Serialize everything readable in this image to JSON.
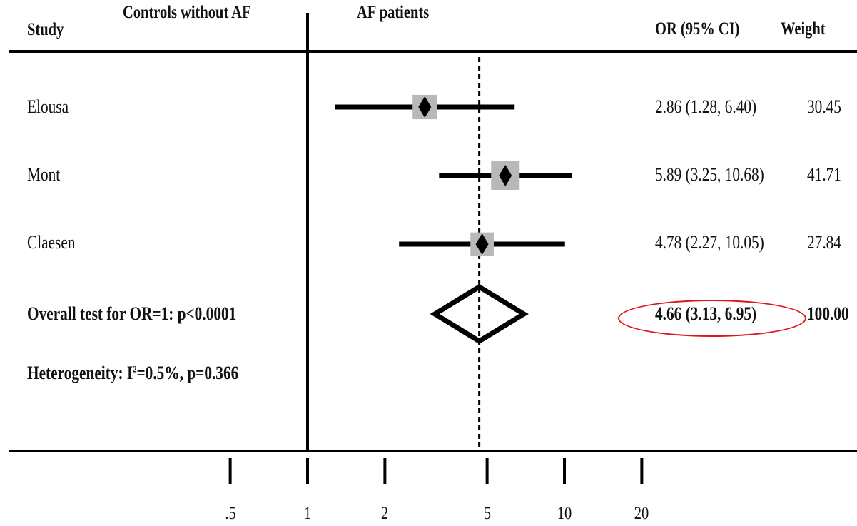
{
  "header": {
    "study": "Study",
    "left_side": "Controls without AF",
    "right_side": "AF patients",
    "or_ci": "OR (95% CI)",
    "weight": "Weight"
  },
  "chart_data": {
    "type": "forest",
    "x_scale": "log",
    "xlim": [
      0.4,
      25
    ],
    "null_line": 1,
    "pooled_line": 4.66,
    "x_ticks": [
      {
        "value": 0.5,
        "label": ".5"
      },
      {
        "value": 1,
        "label": "1"
      },
      {
        "value": 2,
        "label": "2"
      },
      {
        "value": 5,
        "label": "5"
      },
      {
        "value": 10,
        "label": "10"
      },
      {
        "value": 20,
        "label": "20"
      }
    ],
    "studies": [
      {
        "name": "Elousa",
        "or": 2.86,
        "lo": 1.28,
        "hi": 6.4,
        "ci_text": "2.86 (1.28, 6.40)",
        "weight": "30.45",
        "weight_value": 30.45
      },
      {
        "name": "Mont",
        "or": 5.89,
        "lo": 3.25,
        "hi": 10.68,
        "ci_text": "5.89 (3.25, 10.68)",
        "weight": "41.71",
        "weight_value": 41.71
      },
      {
        "name": "Claesen",
        "or": 4.78,
        "lo": 2.27,
        "hi": 10.05,
        "ci_text": "4.78 (2.27, 10.05)",
        "weight": "27.84",
        "weight_value": 27.84
      }
    ],
    "overall": {
      "label": "Overall test for OR=1: p<0.0001",
      "or": 4.66,
      "lo": 3.13,
      "hi": 6.95,
      "ci_text": "4.66 (3.13, 6.95)",
      "weight": "100.00"
    },
    "heterogeneity": {
      "prefix": "Heterogeneity: I",
      "sup": "2",
      "suffix": "=0.5%, p=0.366"
    }
  },
  "colors": {
    "ink": "#000000",
    "box": "#b8b8b8",
    "highlight": "#e0141b"
  }
}
